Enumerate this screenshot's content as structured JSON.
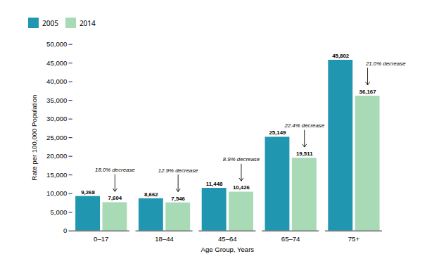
{
  "chart_data": {
    "type": "bar",
    "categories": [
      "0–17",
      "18–44",
      "45–64",
      "65–74",
      "75+"
    ],
    "series": [
      {
        "name": "2005",
        "color": "#2196b0",
        "values": [
          9268,
          8662,
          11448,
          25149,
          45802
        ],
        "value_labels": [
          "9,268",
          "8,662",
          "11,448",
          "25,149",
          "45,802"
        ]
      },
      {
        "name": "2014",
        "color": "#a8dab5",
        "values": [
          7604,
          7546,
          10426,
          19511,
          36167
        ],
        "value_labels": [
          "7,604",
          "7,546",
          "10,426",
          "19,511",
          "36,167"
        ]
      }
    ],
    "xlabel": "Age Group, Years",
    "ylabel": "Rate per 100,000 Population",
    "ylim": [
      0,
      50000
    ],
    "yticks": [
      0,
      {
        "value": 5000,
        "label": "5,000"
      },
      {
        "value": 10000,
        "label": "10,000"
      },
      {
        "value": 15000,
        "label": "15,000"
      },
      {
        "value": 20000,
        "label": "20,000"
      },
      {
        "value": 25000,
        "label": "25,000"
      },
      {
        "value": 30000,
        "label": "30,000"
      },
      {
        "value": 35000,
        "label": "35,000"
      },
      {
        "value": 40000,
        "label": "40,000"
      },
      {
        "value": 45000,
        "label": "45,000"
      },
      {
        "value": 50000,
        "label": "50,000"
      }
    ],
    "legend": "top",
    "data_labels": true,
    "annotations": [
      {
        "text": "18.0% decrease",
        "category": "0–17",
        "series": "2014"
      },
      {
        "text": "12.9% decrease",
        "category": "18–44",
        "series": "2014"
      },
      {
        "text": "8.9% decrease",
        "category": "45–64",
        "series": "2014"
      },
      {
        "text": "22.4% decrease",
        "category": "65–74",
        "series": "2014"
      },
      {
        "text": "21.0% decrease",
        "category": "75+",
        "series": "2014"
      }
    ]
  }
}
